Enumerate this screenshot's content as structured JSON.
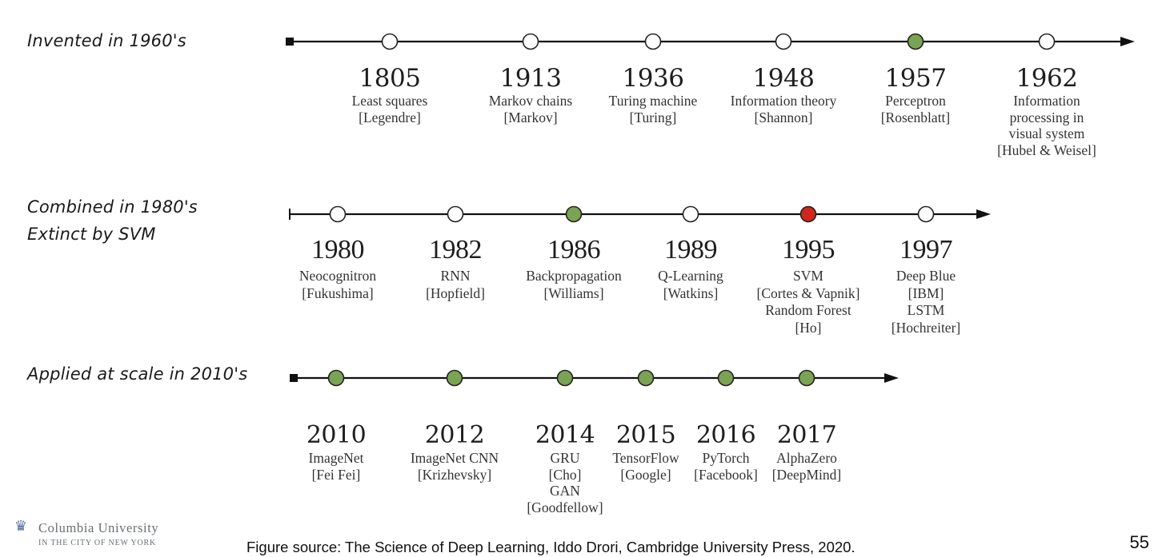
{
  "colors": {
    "line": "#111111",
    "open_node": "#ffffff",
    "green_node": "#7aa354",
    "red_node": "#d0261d"
  },
  "rows": [
    {
      "label": "Invented in 1960's",
      "events": [
        {
          "year": "1805",
          "desc": "Least squares\n[Legendre]",
          "marker": "open"
        },
        {
          "year": "1913",
          "desc": "Markov chains\n[Markov]",
          "marker": "open"
        },
        {
          "year": "1936",
          "desc": "Turing machine\n[Turing]",
          "marker": "open"
        },
        {
          "year": "1948",
          "desc": "Information theory\n[Shannon]",
          "marker": "open"
        },
        {
          "year": "1957",
          "desc": "Perceptron\n[Rosenblatt]",
          "marker": "green"
        },
        {
          "year": "1962",
          "desc": "Information\nprocessing in\nvisual system\n[Hubel & Weisel]",
          "marker": "open"
        }
      ]
    },
    {
      "label": "Combined in 1980's\nExtinct by SVM",
      "events": [
        {
          "year": "1980",
          "desc": "Neocognitron\n[Fukushima]",
          "marker": "open"
        },
        {
          "year": "1982",
          "desc": "RNN\n[Hopfield]",
          "marker": "open"
        },
        {
          "year": "1986",
          "desc": "Backpropagation\n[Williams]",
          "marker": "green"
        },
        {
          "year": "1989",
          "desc": "Q-Learning\n[Watkins]",
          "marker": "open"
        },
        {
          "year": "1995",
          "desc": "SVM\n[Cortes & Vapnik]\nRandom Forest\n[Ho]",
          "marker": "red"
        },
        {
          "year": "1997",
          "desc": "Deep Blue\n[IBM]\nLSTM\n[Hochreiter]",
          "marker": "open"
        }
      ]
    },
    {
      "label": "Applied at scale in 2010's",
      "events": [
        {
          "year": "2010",
          "desc": "ImageNet\n[Fei Fei]",
          "marker": "green"
        },
        {
          "year": "2012",
          "desc": "ImageNet CNN\n[Krizhevsky]",
          "marker": "green"
        },
        {
          "year": "2014",
          "desc": "GRU\n[Cho]\nGAN\n[Goodfellow]",
          "marker": "green"
        },
        {
          "year": "2015",
          "desc": "TensorFlow\n[Google]",
          "marker": "green"
        },
        {
          "year": "2016",
          "desc": "PyTorch\n[Facebook]",
          "marker": "green"
        },
        {
          "year": "2017",
          "desc": "AlphaZero\n[DeepMind]",
          "marker": "green"
        }
      ]
    }
  ],
  "footer": {
    "logo_icon": "crown-icon",
    "logo_name": "Columbia University",
    "logo_sub": "IN THE CITY OF NEW YORK",
    "source": "Figure source: The Science of Deep Learning, Iddo Drori, Cambridge University Press, 2020.",
    "page_number": "55"
  }
}
